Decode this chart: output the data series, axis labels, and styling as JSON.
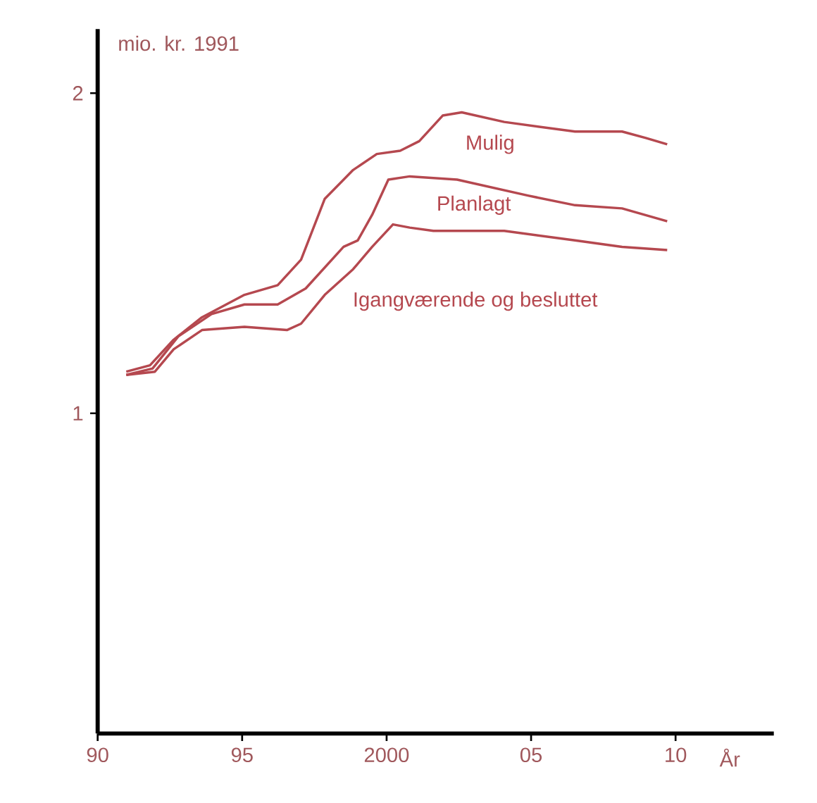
{
  "chart_data": {
    "type": "line",
    "ylabel": "mio. kr. 1991",
    "xlabel": "År",
    "xlim": [
      1990,
      2013.4
    ],
    "ylim": [
      0,
      2.2
    ],
    "xticks": [
      {
        "value": 1990,
        "label": "90"
      },
      {
        "value": 1995,
        "label": "95"
      },
      {
        "value": 2000,
        "label": "2000"
      },
      {
        "value": 2005,
        "label": "05"
      },
      {
        "value": 2010,
        "label": "10"
      }
    ],
    "yticks": [
      1,
      2
    ],
    "grid": false,
    "legend": false,
    "marker": "none",
    "line_style": "solid",
    "series": [
      {
        "name": "Mulig",
        "color": "#b5484f",
        "x": [
          1990.99,
          1991.81,
          1992.63,
          1993.61,
          1995.08,
          1996.23,
          1997.04,
          1997.86,
          1998.84,
          1999.66,
          2000.47,
          2001.13,
          2001.94,
          2002.6,
          2004.07,
          2006.52,
          2008.15,
          2008.97,
          2009.71
        ],
        "values": [
          1.13,
          1.15,
          1.23,
          1.3,
          1.37,
          1.4,
          1.48,
          1.67,
          1.76,
          1.81,
          1.82,
          1.85,
          1.93,
          1.94,
          1.91,
          1.88,
          1.88,
          1.86,
          1.84
        ]
      },
      {
        "name": "Planlagt",
        "color": "#b5484f",
        "x": [
          1990.99,
          1991.9,
          1992.79,
          1993.94,
          1995.08,
          1996.23,
          1997.2,
          1998.51,
          1999.0,
          1999.5,
          2000.06,
          2000.8,
          2002.44,
          2004.89,
          2006.52,
          2008.15,
          2009.71
        ],
        "values": [
          1.12,
          1.14,
          1.24,
          1.31,
          1.34,
          1.34,
          1.39,
          1.52,
          1.54,
          1.62,
          1.73,
          1.74,
          1.73,
          1.68,
          1.65,
          1.64,
          1.6
        ]
      },
      {
        "name": "Igangværende og besluttet",
        "color": "#b5484f",
        "x": [
          1990.99,
          1991.98,
          1992.63,
          1993.61,
          1995.08,
          1996.55,
          1997.04,
          1997.86,
          1998.84,
          1999.5,
          2000.22,
          2000.8,
          2001.62,
          2004.07,
          2006.52,
          2008.15,
          2009.71
        ],
        "values": [
          1.12,
          1.13,
          1.2,
          1.26,
          1.27,
          1.26,
          1.28,
          1.37,
          1.45,
          1.52,
          1.59,
          1.58,
          1.57,
          1.57,
          1.54,
          1.52,
          1.51
        ]
      }
    ]
  }
}
